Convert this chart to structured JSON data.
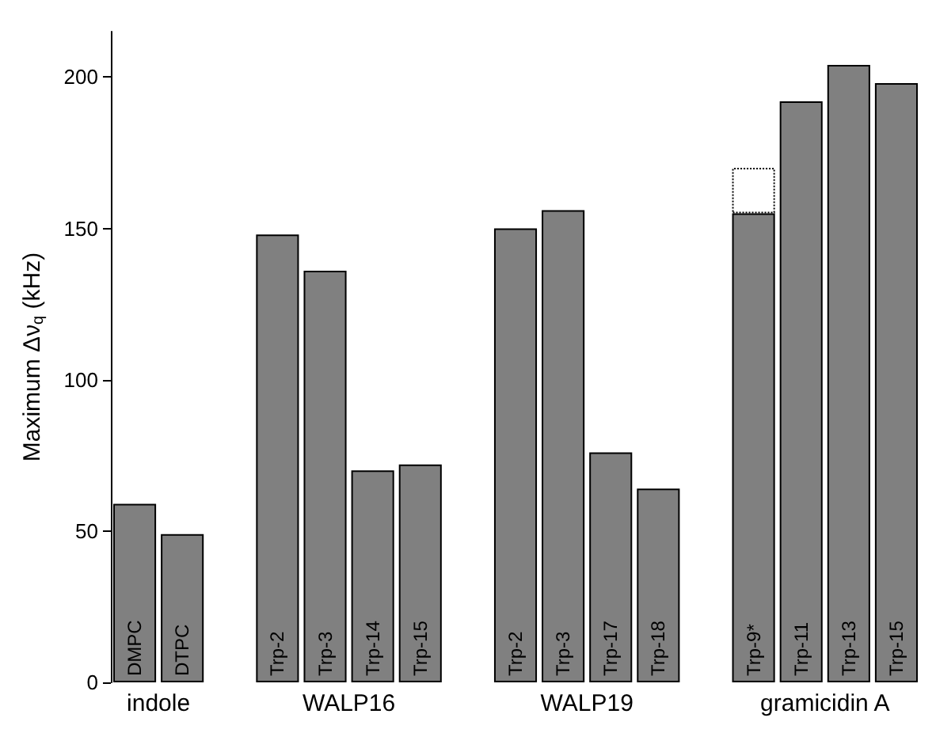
{
  "chart_data": {
    "type": "bar",
    "ylabel": "Maximum Δν$_{q}$ (kHz)",
    "categories": [
      "DMPC",
      "DTPC",
      null,
      "Trp-2",
      "Trp-3",
      "Trp-14",
      "Trp-15",
      null,
      "Trp-2",
      "Trp-3",
      "Trp-17",
      "Trp-18",
      null,
      "Trp-9*",
      "Trp-11",
      "Trp-13",
      "Trp-15"
    ],
    "stacked": true,
    "series": [
      {
        "color": "#808080",
        "values": [
          59,
          49,
          null,
          148,
          136,
          70,
          72,
          null,
          150,
          156,
          76,
          64,
          null,
          155,
          192,
          204,
          198
        ]
      },
      {
        "color": "#ffffff",
        "line_style": "dotted",
        "values": [
          null,
          null,
          null,
          null,
          null,
          null,
          null,
          null,
          null,
          null,
          null,
          null,
          null,
          15,
          null,
          null,
          null
        ]
      }
    ],
    "annotations": [
      "indole",
      "WALP16",
      "WALP19",
      "gramicidin A"
    ],
    "ylim": [
      0,
      215
    ],
    "yticks": [
      0,
      50,
      100,
      150,
      200
    ],
    "grid": false
  }
}
